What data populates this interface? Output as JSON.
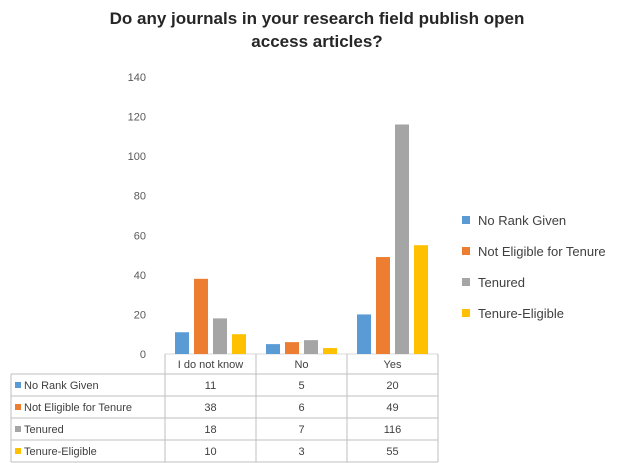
{
  "chart_data": {
    "type": "bar",
    "title": "Do any journals in your research field publish open access articles?",
    "title_lines": [
      "Do any journals in your research field publish open",
      "access articles?"
    ],
    "categories": [
      "I do not know",
      "No",
      "Yes"
    ],
    "series": [
      {
        "name": "No Rank Given",
        "color": "#5B9BD5",
        "values": [
          11,
          5,
          20
        ]
      },
      {
        "name": "Not Eligible for Tenure",
        "color": "#ED7D31",
        "values": [
          38,
          6,
          49
        ]
      },
      {
        "name": "Tenured",
        "color": "#A5A5A5",
        "values": [
          18,
          7,
          116
        ]
      },
      {
        "name": "Tenure-Eligible",
        "color": "#FFC000",
        "values": [
          10,
          3,
          55
        ]
      }
    ],
    "ylim": [
      0,
      140
    ],
    "yticks": [
      0,
      20,
      40,
      60,
      80,
      100,
      120,
      140
    ],
    "grid": false,
    "legend": "right",
    "data_table": true
  }
}
